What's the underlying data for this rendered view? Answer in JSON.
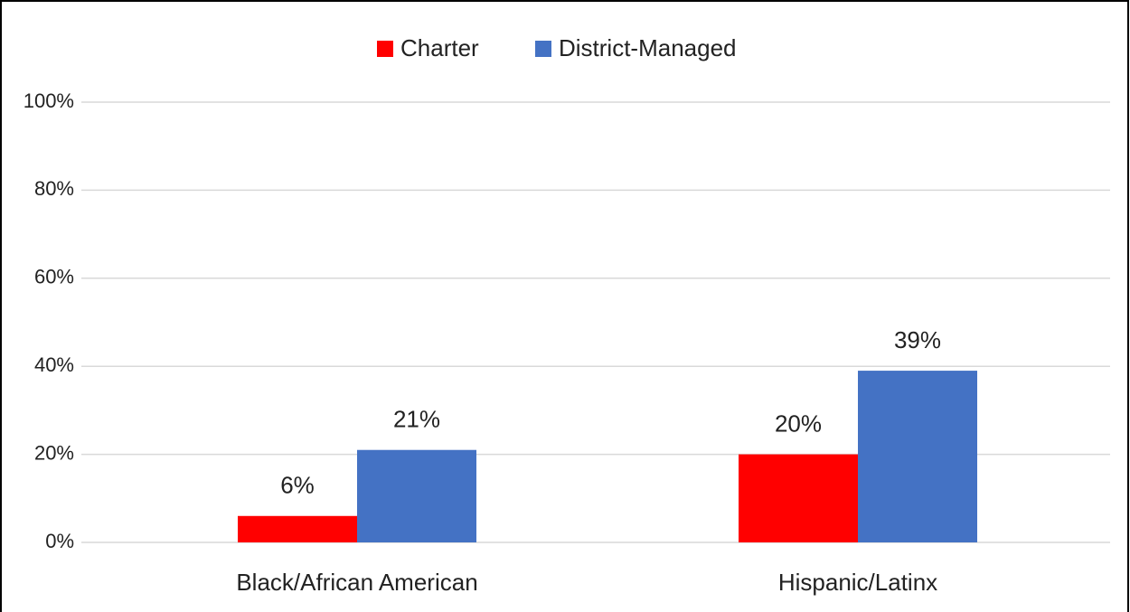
{
  "chart_data": {
    "type": "bar",
    "categories": [
      "Black/African American",
      "Hispanic/Latinx"
    ],
    "series": [
      {
        "name": "Charter",
        "color": "#ff0000",
        "values": [
          6,
          20
        ],
        "value_labels": [
          "6%",
          "20%"
        ]
      },
      {
        "name": "District-Managed",
        "color": "#4472c4",
        "values": [
          21,
          39
        ],
        "value_labels": [
          "21%",
          "39%"
        ]
      }
    ],
    "ylim": [
      0,
      100
    ],
    "yticks": [
      {
        "value": 0,
        "label": "0%"
      },
      {
        "value": 20,
        "label": "20%"
      },
      {
        "value": 40,
        "label": "40%"
      },
      {
        "value": 60,
        "label": "60%"
      },
      {
        "value": 80,
        "label": "80%"
      },
      {
        "value": 100,
        "label": "100%"
      }
    ],
    "grid": true,
    "legend": "top"
  }
}
